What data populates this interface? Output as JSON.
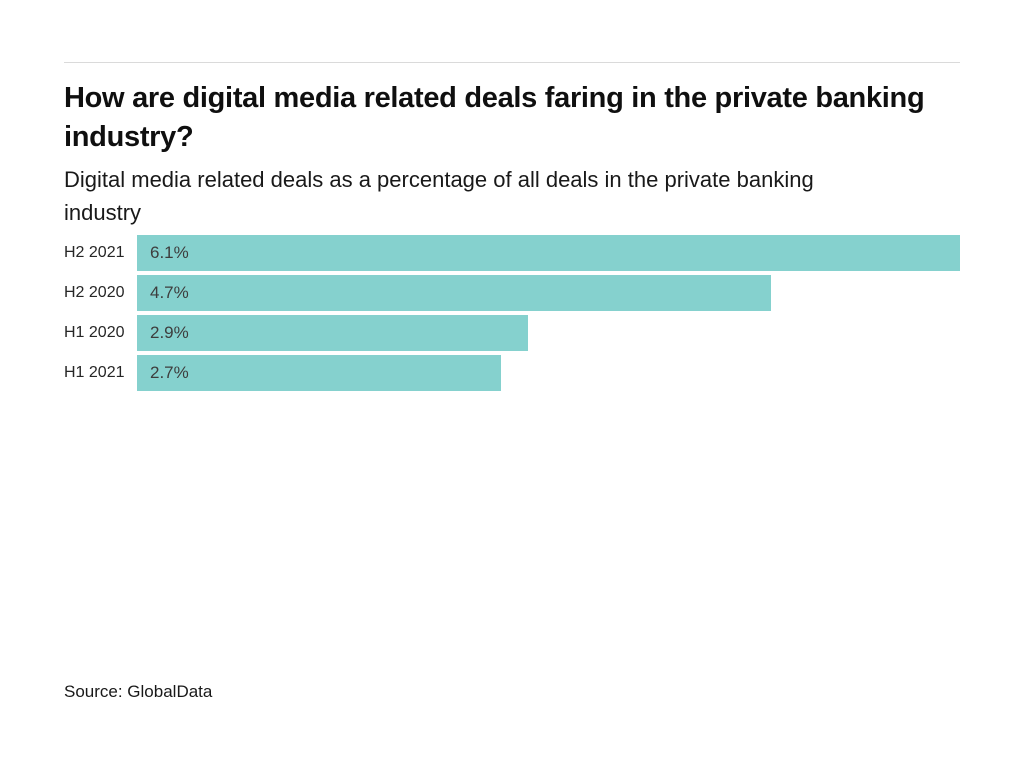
{
  "header": {
    "title": "How are digital media related deals faring in the private banking industry?",
    "subtitle": "Digital media related deals as a percentage of all deals in the private banking industry"
  },
  "chart_data": {
    "type": "bar",
    "orientation": "horizontal",
    "title": "How are digital media related deals faring in the private banking industry?",
    "subtitle": "Digital media related deals as a percentage of all deals in the private banking industry",
    "categories": [
      "H2 2021",
      "H2 2020",
      "H1 2020",
      "H1 2021"
    ],
    "values": [
      6.1,
      4.7,
      2.9,
      2.7
    ],
    "value_labels": [
      "6.1%",
      "4.7%",
      "2.9%",
      "2.7%"
    ],
    "xlabel": "",
    "ylabel": "",
    "xlim": [
      0,
      6.1
    ],
    "grid": false,
    "legend": false,
    "bar_color": "#85d1ce"
  },
  "footer": {
    "source": "Source: GlobalData"
  },
  "colors": {
    "background": "#ffffff",
    "bar": "#85d1ce",
    "divider": "#dadada",
    "title_text": "#0f0f0f",
    "body_text": "#191919",
    "category_text": "#262626",
    "value_text": "#3d3d3d"
  }
}
